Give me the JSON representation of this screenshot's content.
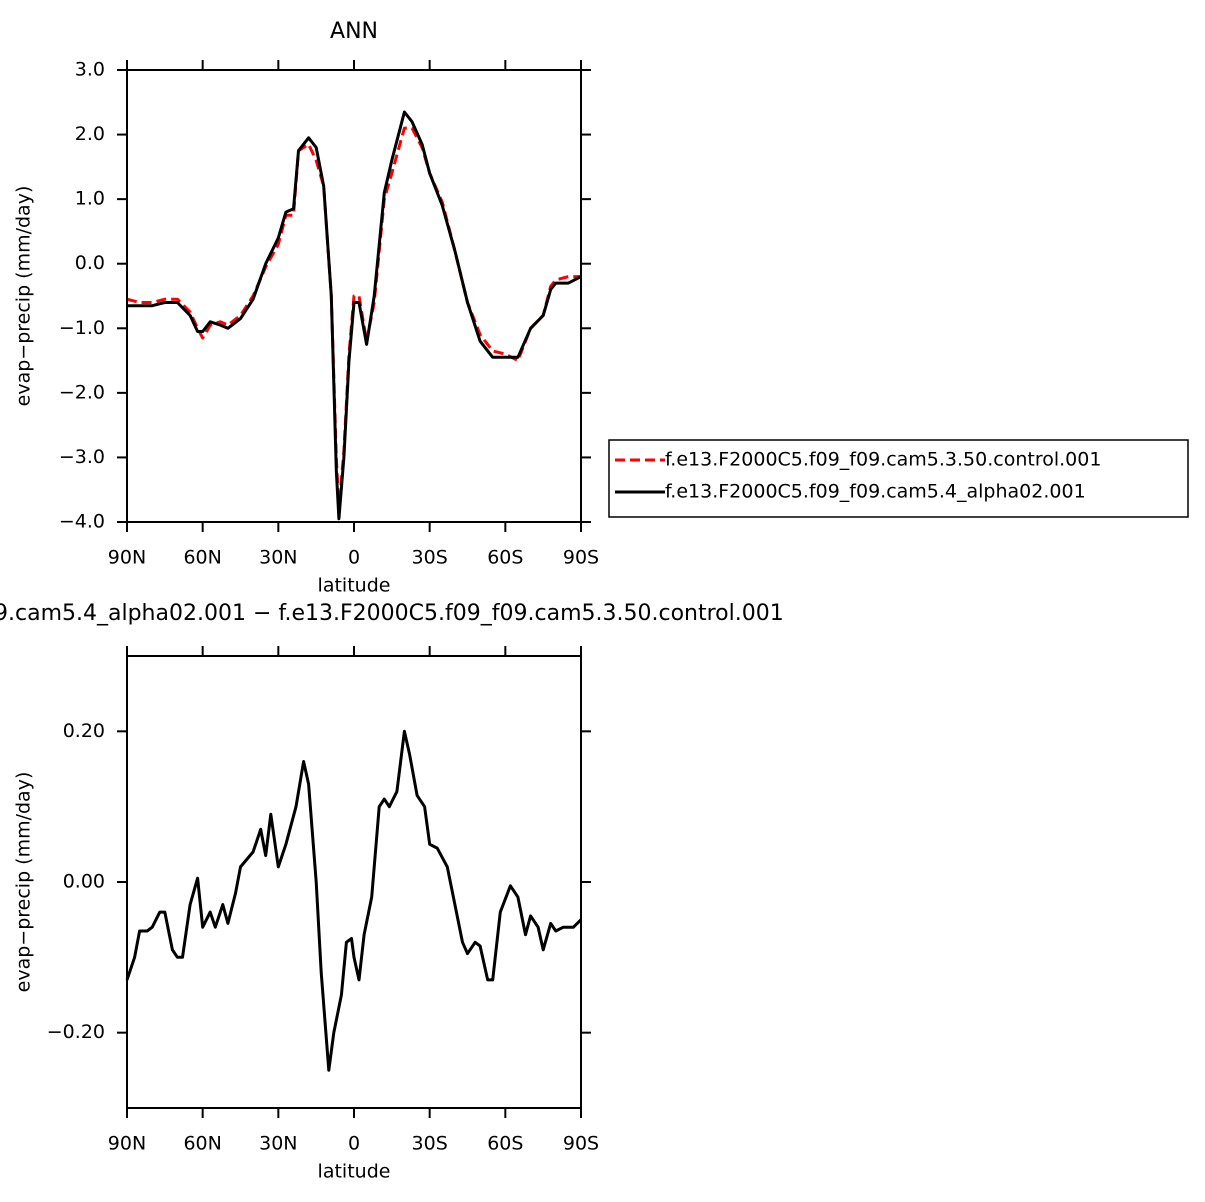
{
  "chart_data": [
    {
      "type": "line",
      "title": "ANN",
      "x_label": "latitude",
      "y_label": "evap−precip (mm/day)",
      "xlim": [
        90,
        -90
      ],
      "xticks": [
        {
          "value": 90,
          "label": "90N"
        },
        {
          "value": 60,
          "label": "60N"
        },
        {
          "value": 30,
          "label": "30N"
        },
        0,
        {
          "value": -30,
          "label": "30S"
        },
        {
          "value": -60,
          "label": "60S"
        },
        {
          "value": -90,
          "label": "90S"
        }
      ],
      "ylim": [
        -4,
        3
      ],
      "yticks": [
        {
          "value": 3,
          "label": "3.0"
        },
        {
          "value": 2,
          "label": "2.0"
        },
        {
          "value": 1,
          "label": "1.0"
        },
        {
          "value": 0,
          "label": "0.0"
        },
        {
          "value": -1,
          "label": "−1.0"
        },
        {
          "value": -2,
          "label": "−2.0"
        },
        {
          "value": -3,
          "label": "−3.0"
        },
        {
          "value": -4,
          "label": "−4.0"
        }
      ],
      "legend": "right",
      "x": [
        90,
        85,
        80,
        75,
        70,
        65,
        62,
        60,
        57,
        53,
        50,
        45,
        40,
        35,
        30,
        27,
        24,
        22,
        18,
        15,
        12,
        9,
        7,
        6,
        4,
        2,
        0,
        -2,
        -5,
        -8,
        -12,
        -15,
        -20,
        -23,
        -27,
        -30,
        -35,
        -40,
        -45,
        -50,
        -55,
        -60,
        -65,
        -70,
        -75,
        -78,
        -80,
        -85,
        -90
      ],
      "series": [
        {
          "name": "f.e13.F2000C5.f09_f09.cam5.3.50.control.001",
          "color": "#ff0000",
          "linestyle": "dashed",
          "values": [
            -0.55,
            -0.6,
            -0.6,
            -0.55,
            -0.55,
            -0.75,
            -1.0,
            -1.15,
            -0.95,
            -0.9,
            -0.95,
            -0.8,
            -0.5,
            -0.05,
            0.3,
            0.75,
            0.75,
            1.75,
            1.85,
            1.6,
            1.2,
            -0.5,
            -3.0,
            -3.8,
            -2.9,
            -1.4,
            -0.5,
            -0.5,
            -1.2,
            -0.6,
            1.0,
            1.4,
            2.1,
            2.1,
            1.8,
            1.4,
            0.95,
            0.2,
            -0.6,
            -1.1,
            -1.35,
            -1.4,
            -1.5,
            -1.0,
            -0.8,
            -0.35,
            -0.25,
            -0.2,
            -0.2
          ]
        },
        {
          "name": "f.e13.F2000C5.f09_f09.cam5.4_alpha02.001",
          "color": "#000000",
          "linestyle": "solid",
          "values": [
            -0.65,
            -0.65,
            -0.65,
            -0.6,
            -0.6,
            -0.8,
            -1.05,
            -1.05,
            -0.9,
            -0.95,
            -1.0,
            -0.85,
            -0.55,
            0.0,
            0.4,
            0.8,
            0.85,
            1.75,
            1.95,
            1.8,
            1.2,
            -0.5,
            -3.2,
            -3.95,
            -3.0,
            -1.5,
            -0.6,
            -0.6,
            -1.25,
            -0.5,
            1.1,
            1.6,
            2.35,
            2.2,
            1.85,
            1.4,
            0.9,
            0.2,
            -0.6,
            -1.2,
            -1.45,
            -1.45,
            -1.45,
            -1.0,
            -0.8,
            -0.4,
            -0.3,
            -0.3,
            -0.2
          ]
        }
      ]
    },
    {
      "type": "line",
      "title": "9.cam5.4_alpha02.001 − f.e13.F2000C5.f09_f09.cam5.3.50.control.001",
      "x_label": "latitude",
      "y_label": "evap−precip (mm/day)",
      "xlim": [
        90,
        -90
      ],
      "xticks": [
        {
          "value": 90,
          "label": "90N"
        },
        {
          "value": 60,
          "label": "60N"
        },
        {
          "value": 30,
          "label": "30N"
        },
        0,
        {
          "value": -30,
          "label": "30S"
        },
        {
          "value": -60,
          "label": "60S"
        },
        {
          "value": -90,
          "label": "90S"
        }
      ],
      "ylim": [
        -0.3,
        0.3
      ],
      "yticks": [
        {
          "value": 0.2,
          "label": "0.20"
        },
        {
          "value": 0,
          "label": "0.00"
        },
        {
          "value": -0.2,
          "label": "−0.20"
        }
      ],
      "x": [
        90,
        87,
        85,
        82,
        80,
        77,
        75,
        72,
        70,
        68,
        65,
        62,
        60,
        57,
        55,
        52,
        50,
        47,
        45,
        40,
        37,
        35,
        33,
        30,
        27,
        23,
        20,
        18,
        15,
        13,
        10,
        8,
        5,
        3,
        1,
        0,
        -2,
        -4,
        -7,
        -10,
        -12,
        -14,
        -17,
        -20,
        -22,
        -25,
        -28,
        -30,
        -33,
        -37,
        -40,
        -43,
        -45,
        -48,
        -50,
        -53,
        -55,
        -58,
        -62,
        -65,
        -68,
        -70,
        -73,
        -75,
        -78,
        -80,
        -83,
        -87,
        -90
      ],
      "series": [
        {
          "color": "#000000",
          "linestyle": "solid",
          "values": [
            -0.13,
            -0.1,
            -0.065,
            -0.065,
            -0.06,
            -0.04,
            -0.04,
            -0.09,
            -0.1,
            -0.1,
            -0.03,
            0.005,
            -0.06,
            -0.04,
            -0.06,
            -0.03,
            -0.055,
            -0.015,
            0.02,
            0.04,
            0.07,
            0.035,
            0.09,
            0.02,
            0.05,
            0.1,
            0.16,
            0.13,
            0.0,
            -0.12,
            -0.25,
            -0.2,
            -0.15,
            -0.08,
            -0.075,
            -0.1,
            -0.13,
            -0.07,
            -0.02,
            0.1,
            0.11,
            0.1,
            0.12,
            0.2,
            0.17,
            0.115,
            0.1,
            0.05,
            0.045,
            0.02,
            -0.03,
            -0.08,
            -0.095,
            -0.08,
            -0.085,
            -0.13,
            -0.13,
            -0.04,
            -0.005,
            -0.02,
            -0.07,
            -0.045,
            -0.06,
            -0.09,
            -0.055,
            -0.065,
            -0.06,
            -0.06,
            -0.05
          ]
        }
      ]
    }
  ]
}
